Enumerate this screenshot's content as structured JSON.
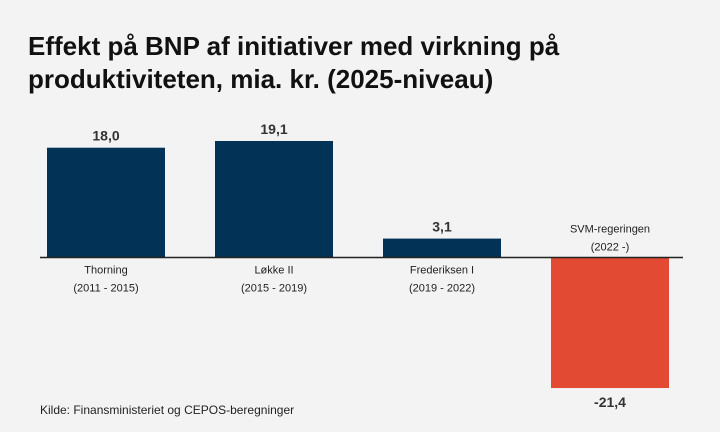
{
  "title": {
    "line1": "Effekt på BNP af initiativer med virkning på",
    "line2": "produktiviteten, mia. kr. (2025-niveau)"
  },
  "source": "Kilde: Finansministeriet og CEPOS-beregninger",
  "colors": {
    "positive": "#023255",
    "negative": "#e34a33",
    "background": "#f3f3f3",
    "baseline": "#222222"
  },
  "chart_data": {
    "type": "bar",
    "title": "Effekt på BNP af initiativer med virkning på produktiviteten, mia. kr. (2025-niveau)",
    "categories": [
      {
        "name": "Thorning",
        "period": "(2011 - 2015)"
      },
      {
        "name": "Løkke II",
        "period": "(2015 - 2019)"
      },
      {
        "name": "Frederiksen I",
        "period": "(2019 - 2022)"
      },
      {
        "name": "SVM-regeringen",
        "period": "(2022 -)"
      }
    ],
    "values": [
      18.0,
      19.1,
      3.1,
      -21.4
    ],
    "value_labels": [
      "18,0",
      "19,1",
      "3,1",
      "-21,4"
    ],
    "ylim": [
      -21.4,
      19.1
    ],
    "grid": false,
    "legend": "none"
  }
}
